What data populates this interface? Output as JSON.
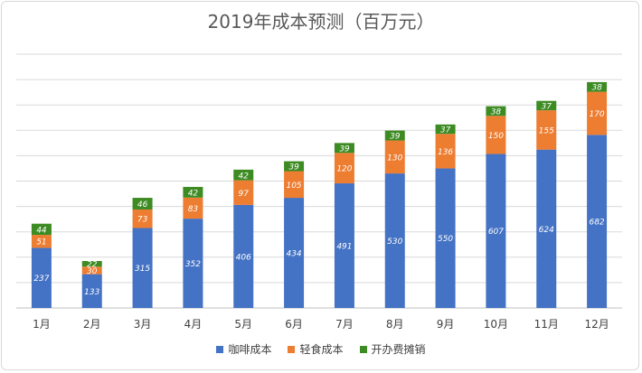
{
  "chart_data": {
    "type": "bar",
    "stacked": true,
    "title": "2019年成本预测（百万元）",
    "categories": [
      "1月",
      "2月",
      "3月",
      "4月",
      "5月",
      "6月",
      "7月",
      "8月",
      "9月",
      "10月",
      "11月",
      "12月"
    ],
    "series": [
      {
        "name": "咖啡成本",
        "color": "#4472c4",
        "label_color": "#ffffff",
        "values": [
          237,
          133,
          315,
          352,
          406,
          434,
          491,
          530,
          550,
          607,
          624,
          682
        ]
      },
      {
        "name": "轻食成本",
        "color": "#ed7d31",
        "label_color": "#ffffff",
        "values": [
          51,
          30,
          73,
          83,
          97,
          105,
          120,
          130,
          136,
          150,
          155,
          170
        ]
      },
      {
        "name": "开办费摊销",
        "color": "#3d8b23",
        "label_color": "#ffffff",
        "values": [
          44,
          22,
          46,
          42,
          42,
          39,
          39,
          39,
          37,
          38,
          37,
          38
        ]
      }
    ],
    "ylim": [
      0,
      1000
    ],
    "y_gridline_step": 100,
    "y_tick_labels_visible": false,
    "grid": true,
    "legend_position": "bottom",
    "xlabel": "",
    "ylabel": ""
  }
}
